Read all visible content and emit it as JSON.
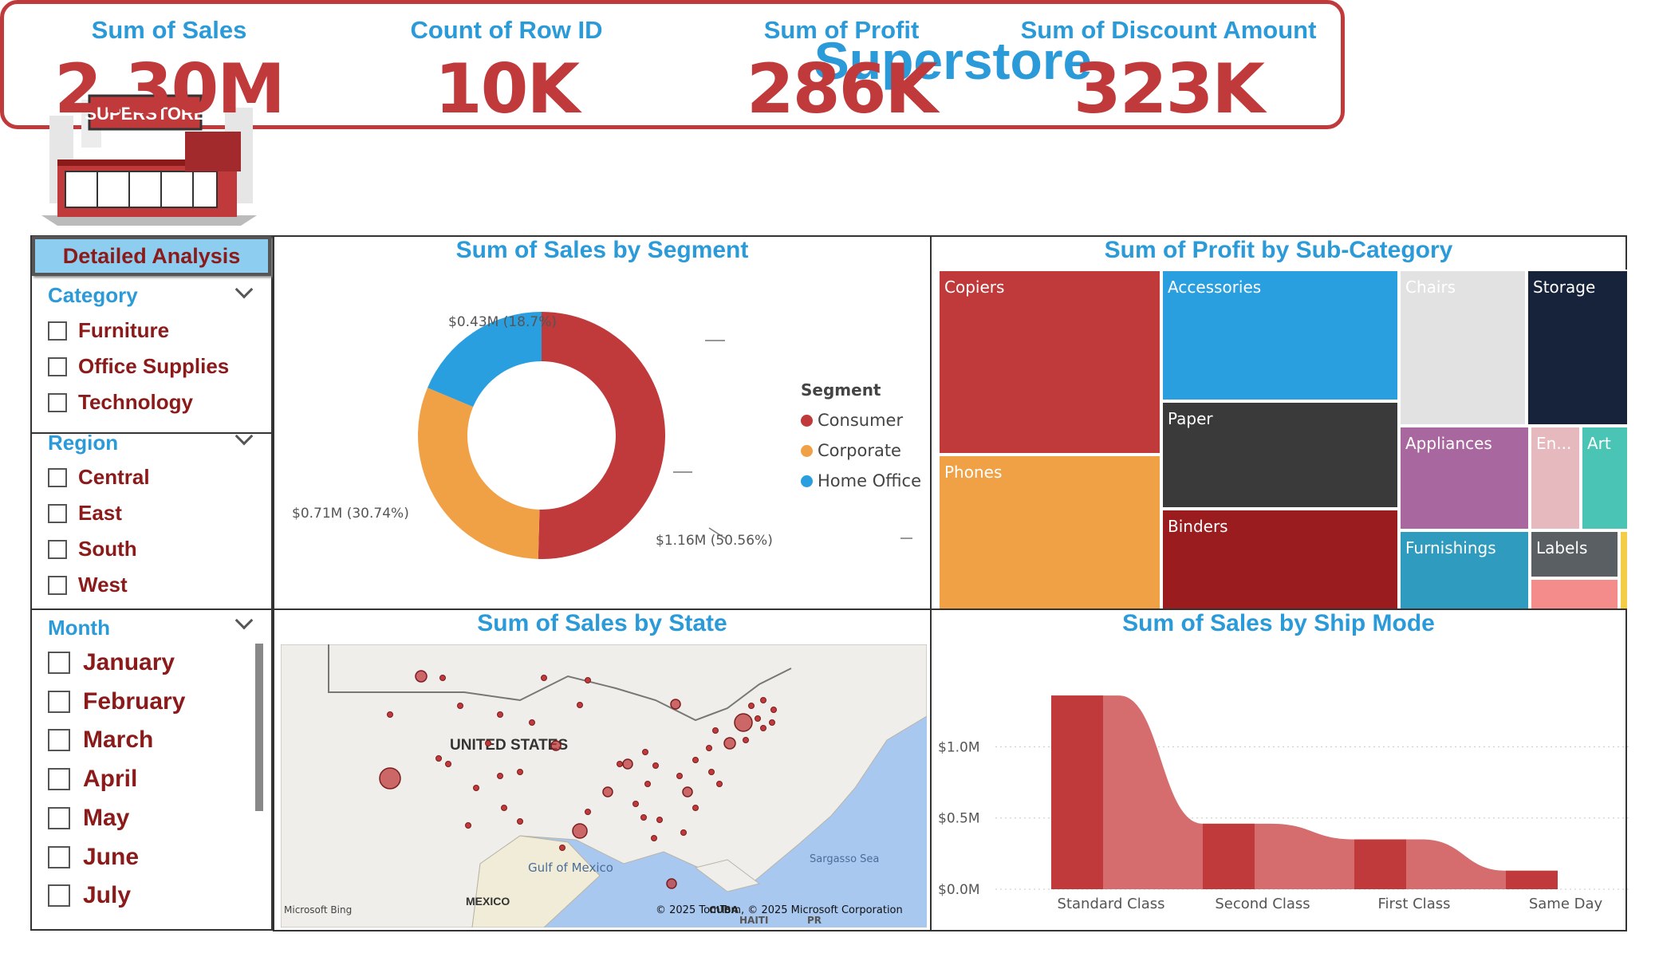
{
  "header": {
    "title": "Superstore",
    "logo_text": "SUPERSTORE"
  },
  "kpis": [
    {
      "label": "Sum of Sales",
      "value": "2.30M"
    },
    {
      "label": "Count of Row ID",
      "value": "10K"
    },
    {
      "label": "Sum of Profit",
      "value": "286K"
    },
    {
      "label": "Sum of Discount Amount",
      "value": "323K"
    }
  ],
  "slicers": {
    "detailed_button": "Detailed Analysis",
    "category": {
      "title": "Category",
      "options": [
        "Furniture",
        "Office Supplies",
        "Technology"
      ]
    },
    "region": {
      "title": "Region",
      "options": [
        "Central",
        "East",
        "South",
        "West"
      ]
    },
    "month": {
      "title": "Month",
      "options": [
        "January",
        "February",
        "March",
        "April",
        "May",
        "June",
        "July"
      ]
    }
  },
  "segment_chart": {
    "title": "Sum of Sales by Segment",
    "legend_title": "Segment",
    "labels": [
      "$1.16M (50.56%)",
      "$0.71M (30.74%)",
      "$0.43M (18.7%)"
    ]
  },
  "treemap": {
    "title": "Sum of Profit by Sub-Category",
    "cells": [
      "Copiers",
      "Phones",
      "Accessories",
      "Paper",
      "Binders",
      "Chairs",
      "Storage",
      "Appliances",
      "En...",
      "Art",
      "Furnishings",
      "Labels"
    ]
  },
  "map": {
    "title": "Sum of Sales by State",
    "country_label": "UNITED STATES",
    "gulf_label": "Gulf of Mexico",
    "mexico_label": "MEXICO",
    "sargasso_label": "Sargasso Sea",
    "cuba_label": "CUBA",
    "haiti_label": "HAITI",
    "pr_label": "PR",
    "bing_label": "Microsoft Bing",
    "copyright": "© 2025 TomTom, © 2025 Microsoft Corporation"
  },
  "ship_chart": {
    "title": "Sum of Sales by Ship Mode"
  },
  "colors": {
    "consumer": "#c0393b",
    "corporate": "#f0a145",
    "home_office": "#2a9fe0",
    "accent_blue": "#2b9ad8",
    "accent_red": "#c0393b"
  },
  "chart_data": [
    {
      "type": "pie",
      "title": "Sum of Sales by Segment",
      "legend_title": "Segment",
      "categories": [
        "Consumer",
        "Corporate",
        "Home Office"
      ],
      "values": [
        1.16,
        0.71,
        0.43
      ],
      "percentages": [
        50.56,
        30.74,
        18.7
      ],
      "legend": "right"
    },
    {
      "type": "area",
      "title": "Sum of Sales by Ship Mode",
      "categories": [
        "Standard Class",
        "Second Class",
        "First Class",
        "Same Day"
      ],
      "values": [
        1.36,
        0.46,
        0.35,
        0.13
      ],
      "y_ticks": [
        "$0.0M",
        "$0.5M",
        "$1.0M"
      ],
      "ylim": [
        0,
        1.4
      ],
      "grid": true
    }
  ]
}
